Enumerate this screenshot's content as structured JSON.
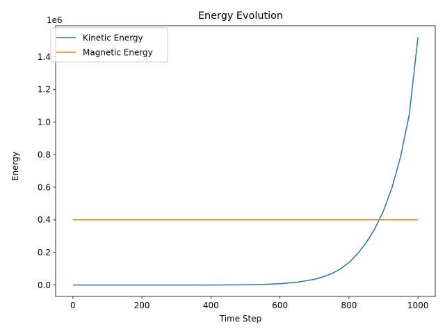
{
  "chart_data": {
    "type": "line",
    "title": "Energy Evolution",
    "xlabel": "Time Step",
    "ylabel": "Energy",
    "y_offset_label": "1e6",
    "xlim": [
      -50,
      1050
    ],
    "ylim": [
      -70000,
      1590000
    ],
    "x_ticks": [
      0,
      200,
      400,
      600,
      800,
      1000
    ],
    "x_tick_labels": [
      "0",
      "200",
      "400",
      "600",
      "800",
      "1000"
    ],
    "y_ticks": [
      0,
      200000,
      400000,
      600000,
      800000,
      1000000,
      1200000,
      1400000
    ],
    "y_tick_labels": [
      "0.0",
      "0.2",
      "0.4",
      "0.6",
      "0.8",
      "1.0",
      "1.2",
      "1.4"
    ],
    "grid": false,
    "legend_position": "top-left",
    "series": [
      {
        "name": "Kinetic Energy",
        "color": "#1f77b4",
        "x": [
          0,
          100,
          200,
          300,
          400,
          500,
          550,
          600,
          650,
          700,
          725,
          750,
          775,
          800,
          825,
          850,
          875,
          900,
          925,
          950,
          975,
          1000
        ],
        "y": [
          0,
          0,
          0,
          0,
          0,
          1500,
          3500,
          8000,
          17000,
          35000,
          50000,
          70000,
          98000,
          138000,
          192000,
          260000,
          345000,
          455000,
          600000,
          790000,
          1050000,
          1520000
        ]
      },
      {
        "name": "Magnetic Energy",
        "color": "#ff7f0e",
        "x": [
          0,
          1000
        ],
        "y": [
          400000,
          400000
        ]
      }
    ]
  }
}
